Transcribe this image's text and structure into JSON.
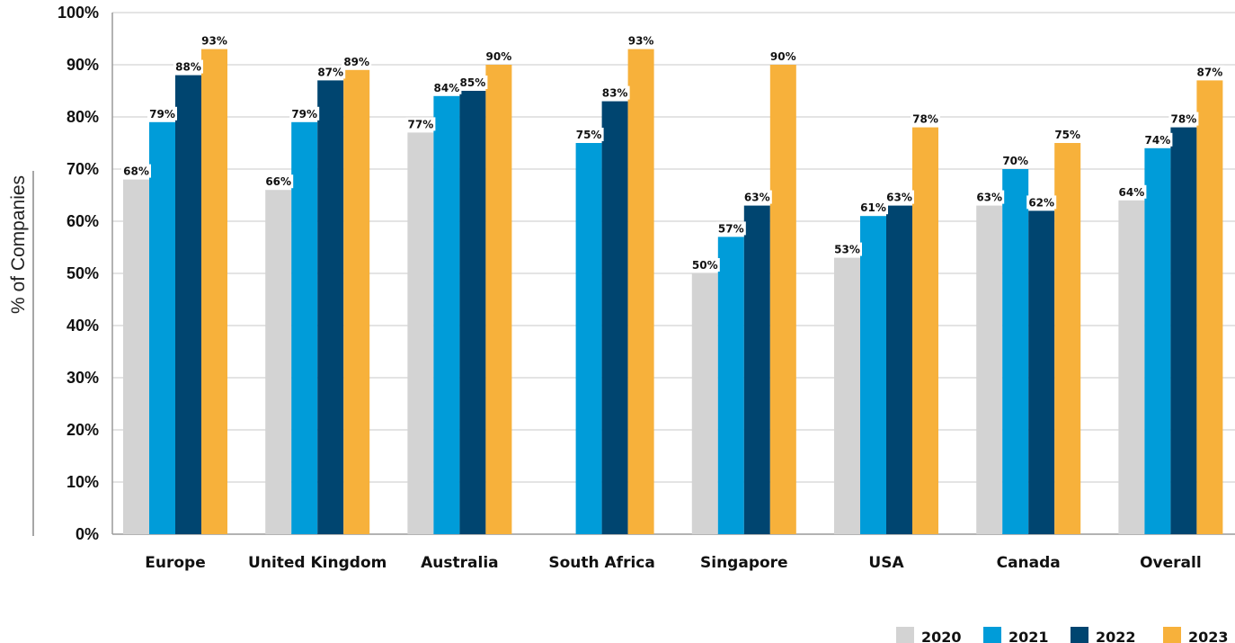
{
  "chart_data": {
    "type": "bar",
    "title": "",
    "xlabel": "",
    "ylabel": "% of Companies",
    "ylim": [
      0,
      100
    ],
    "ytick_labels": [
      "0%",
      "10%",
      "20%",
      "30%",
      "40%",
      "50%",
      "60%",
      "70%",
      "80%",
      "90%",
      "100%"
    ],
    "grid": true,
    "legend_position": "bottom-right",
    "categories": [
      "Europe",
      "United Kingdom",
      "Australia",
      "South Africa",
      "Singapore",
      "USA",
      "Canada",
      "Overall"
    ],
    "series": [
      {
        "name": "2020",
        "color": "#d3d3d3",
        "values": [
          68,
          66,
          77,
          null,
          50,
          53,
          63,
          64
        ],
        "labels": [
          "68%",
          "66%",
          "77%",
          null,
          "50%",
          "53%",
          "63%",
          "64%"
        ]
      },
      {
        "name": "2021",
        "color": "#009cd9",
        "values": [
          79,
          79,
          84,
          75,
          57,
          61,
          70,
          74
        ],
        "labels": [
          "79%",
          "79%",
          "84%",
          "75%",
          "57%",
          "61%",
          "70%",
          "74%"
        ]
      },
      {
        "name": "2022",
        "color": "#004570",
        "values": [
          88,
          87,
          85,
          83,
          63,
          63,
          62,
          78
        ],
        "labels": [
          "88%",
          "87%",
          "85%",
          "83%",
          "63%",
          "63%",
          "62%",
          "78%"
        ]
      },
      {
        "name": "2023",
        "color": "#f7b13b",
        "values": [
          93,
          89,
          90,
          93,
          90,
          78,
          75,
          87
        ],
        "labels": [
          "93%",
          "89%",
          "90%",
          "93%",
          "90%",
          "78%",
          "75%",
          "87%"
        ]
      }
    ]
  }
}
